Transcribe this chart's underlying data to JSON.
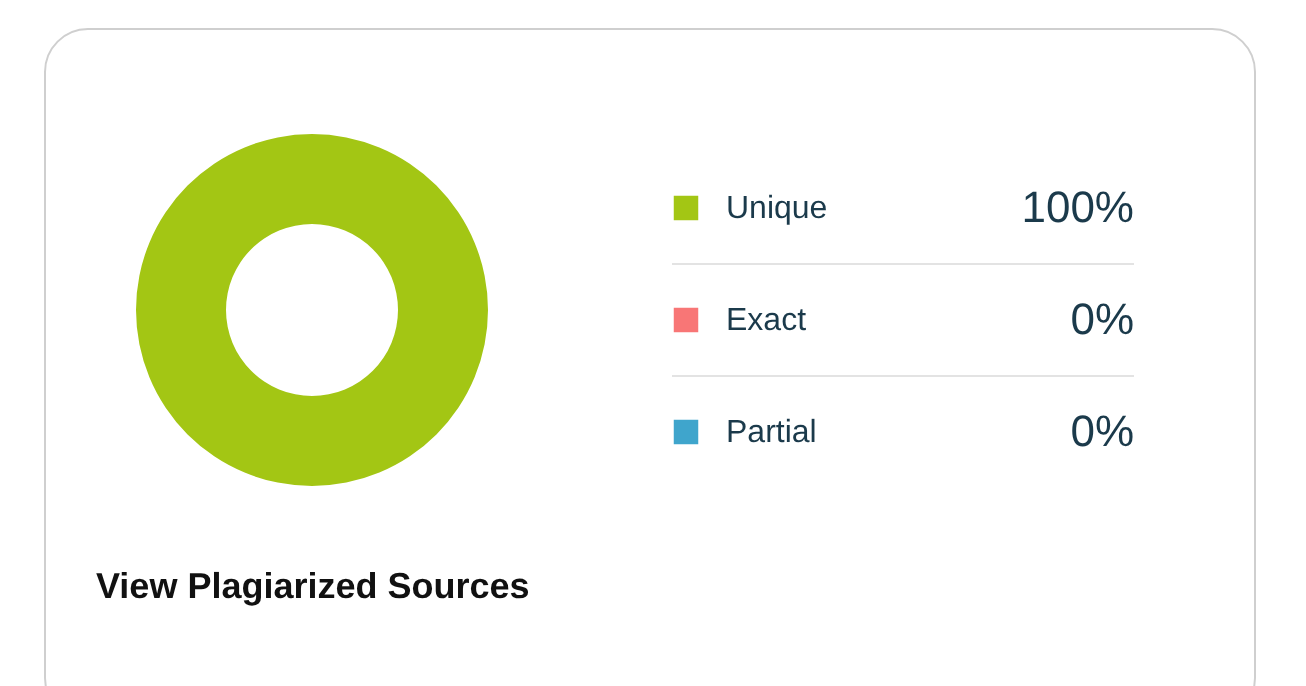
{
  "chart_data": {
    "type": "donut",
    "categories": [
      "Unique",
      "Exact",
      "Partial"
    ],
    "values": [
      100,
      0,
      0
    ],
    "colors": [
      "#a3c614",
      "#f87676",
      "#3fa5cc"
    ],
    "value_labels": [
      "100%",
      "0%",
      "0%"
    ],
    "legend": "right",
    "annotations": [
      "View Plagiarized Sources"
    ]
  }
}
